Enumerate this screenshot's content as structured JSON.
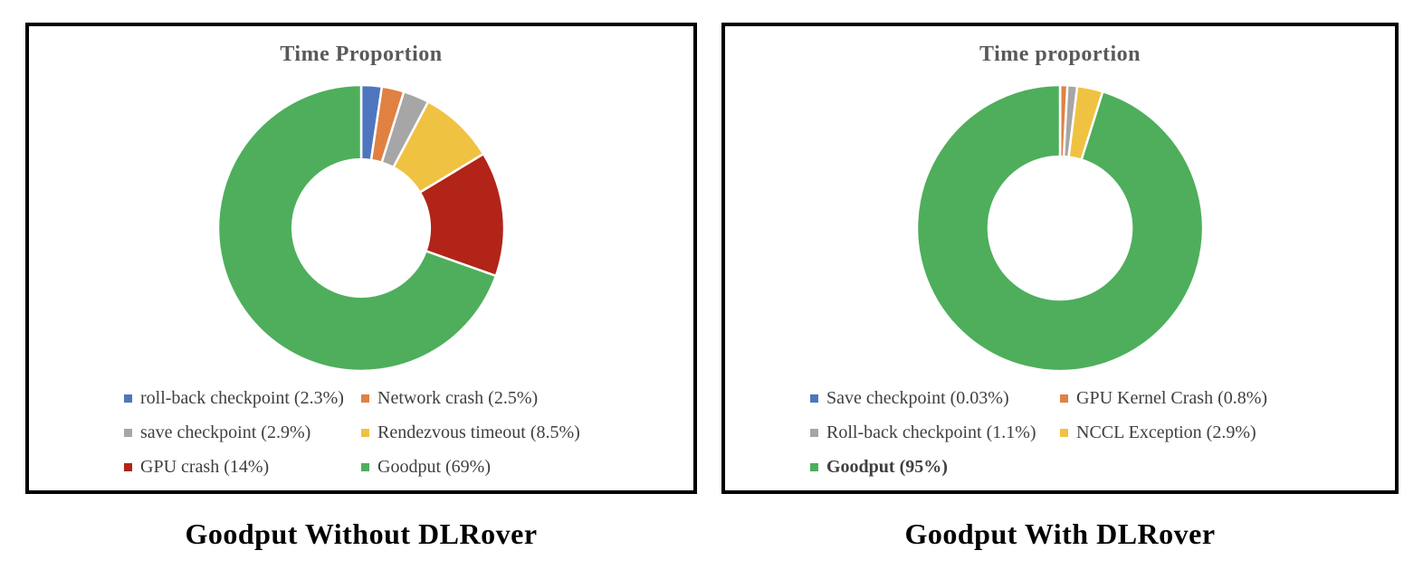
{
  "page": {
    "background_color": "#ffffff",
    "panel_border_color": "#000000",
    "title_text_color": "#595959",
    "legend_text_color": "#3F3F3F"
  },
  "chart_data": [
    {
      "type": "pie",
      "subtype": "donut",
      "title": "Time Proportion",
      "caption": "Goodput Without DLRover",
      "labels": [
        "roll-back checkpoint",
        "Network crash",
        "save checkpoint",
        "Rendezvous timeout",
        "GPU crash",
        "Goodput"
      ],
      "values": [
        2.3,
        2.5,
        2.9,
        8.5,
        14,
        69
      ],
      "legend_labels": [
        "roll-back checkpoint (2.3%)",
        "Network crash (2.5%)",
        "save checkpoint (2.9%)",
        "Rendezvous timeout (8.5%)",
        "GPU crash (14%)",
        "Goodput (69%)"
      ],
      "colors": [
        "#4D76BE",
        "#E08142",
        "#A6A6A6",
        "#F0C242",
        "#B22418",
        "#4EAE5C"
      ],
      "start_angle_deg": -90,
      "direction": "clockwise",
      "inner_radius_ratio": 0.48,
      "slice_border_color": "#ffffff",
      "legend_position": "bottom",
      "legend_columns": 2,
      "legend_bold_indices": []
    },
    {
      "type": "pie",
      "subtype": "donut",
      "title": "Time proportion",
      "caption": "Goodput With DLRover",
      "labels": [
        "Save checkpoint",
        "GPU Kernel Crash",
        "Roll-back checkpoint",
        "NCCL Exception",
        "Goodput"
      ],
      "values": [
        0.03,
        0.8,
        1.1,
        2.9,
        95
      ],
      "legend_labels": [
        "Save checkpoint (0.03%)",
        "GPU Kernel Crash (0.8%)",
        "Roll-back checkpoint (1.1%)",
        "NCCL Exception (2.9%)",
        "Goodput (95%)"
      ],
      "colors": [
        "#4D76BE",
        "#E08142",
        "#A6A6A6",
        "#F0C242",
        "#4EAE5C"
      ],
      "start_angle_deg": -90,
      "direction": "clockwise",
      "inner_radius_ratio": 0.5,
      "slice_border_color": "#ffffff",
      "legend_position": "bottom",
      "legend_columns": 2,
      "legend_bold_indices": [
        4
      ]
    }
  ]
}
